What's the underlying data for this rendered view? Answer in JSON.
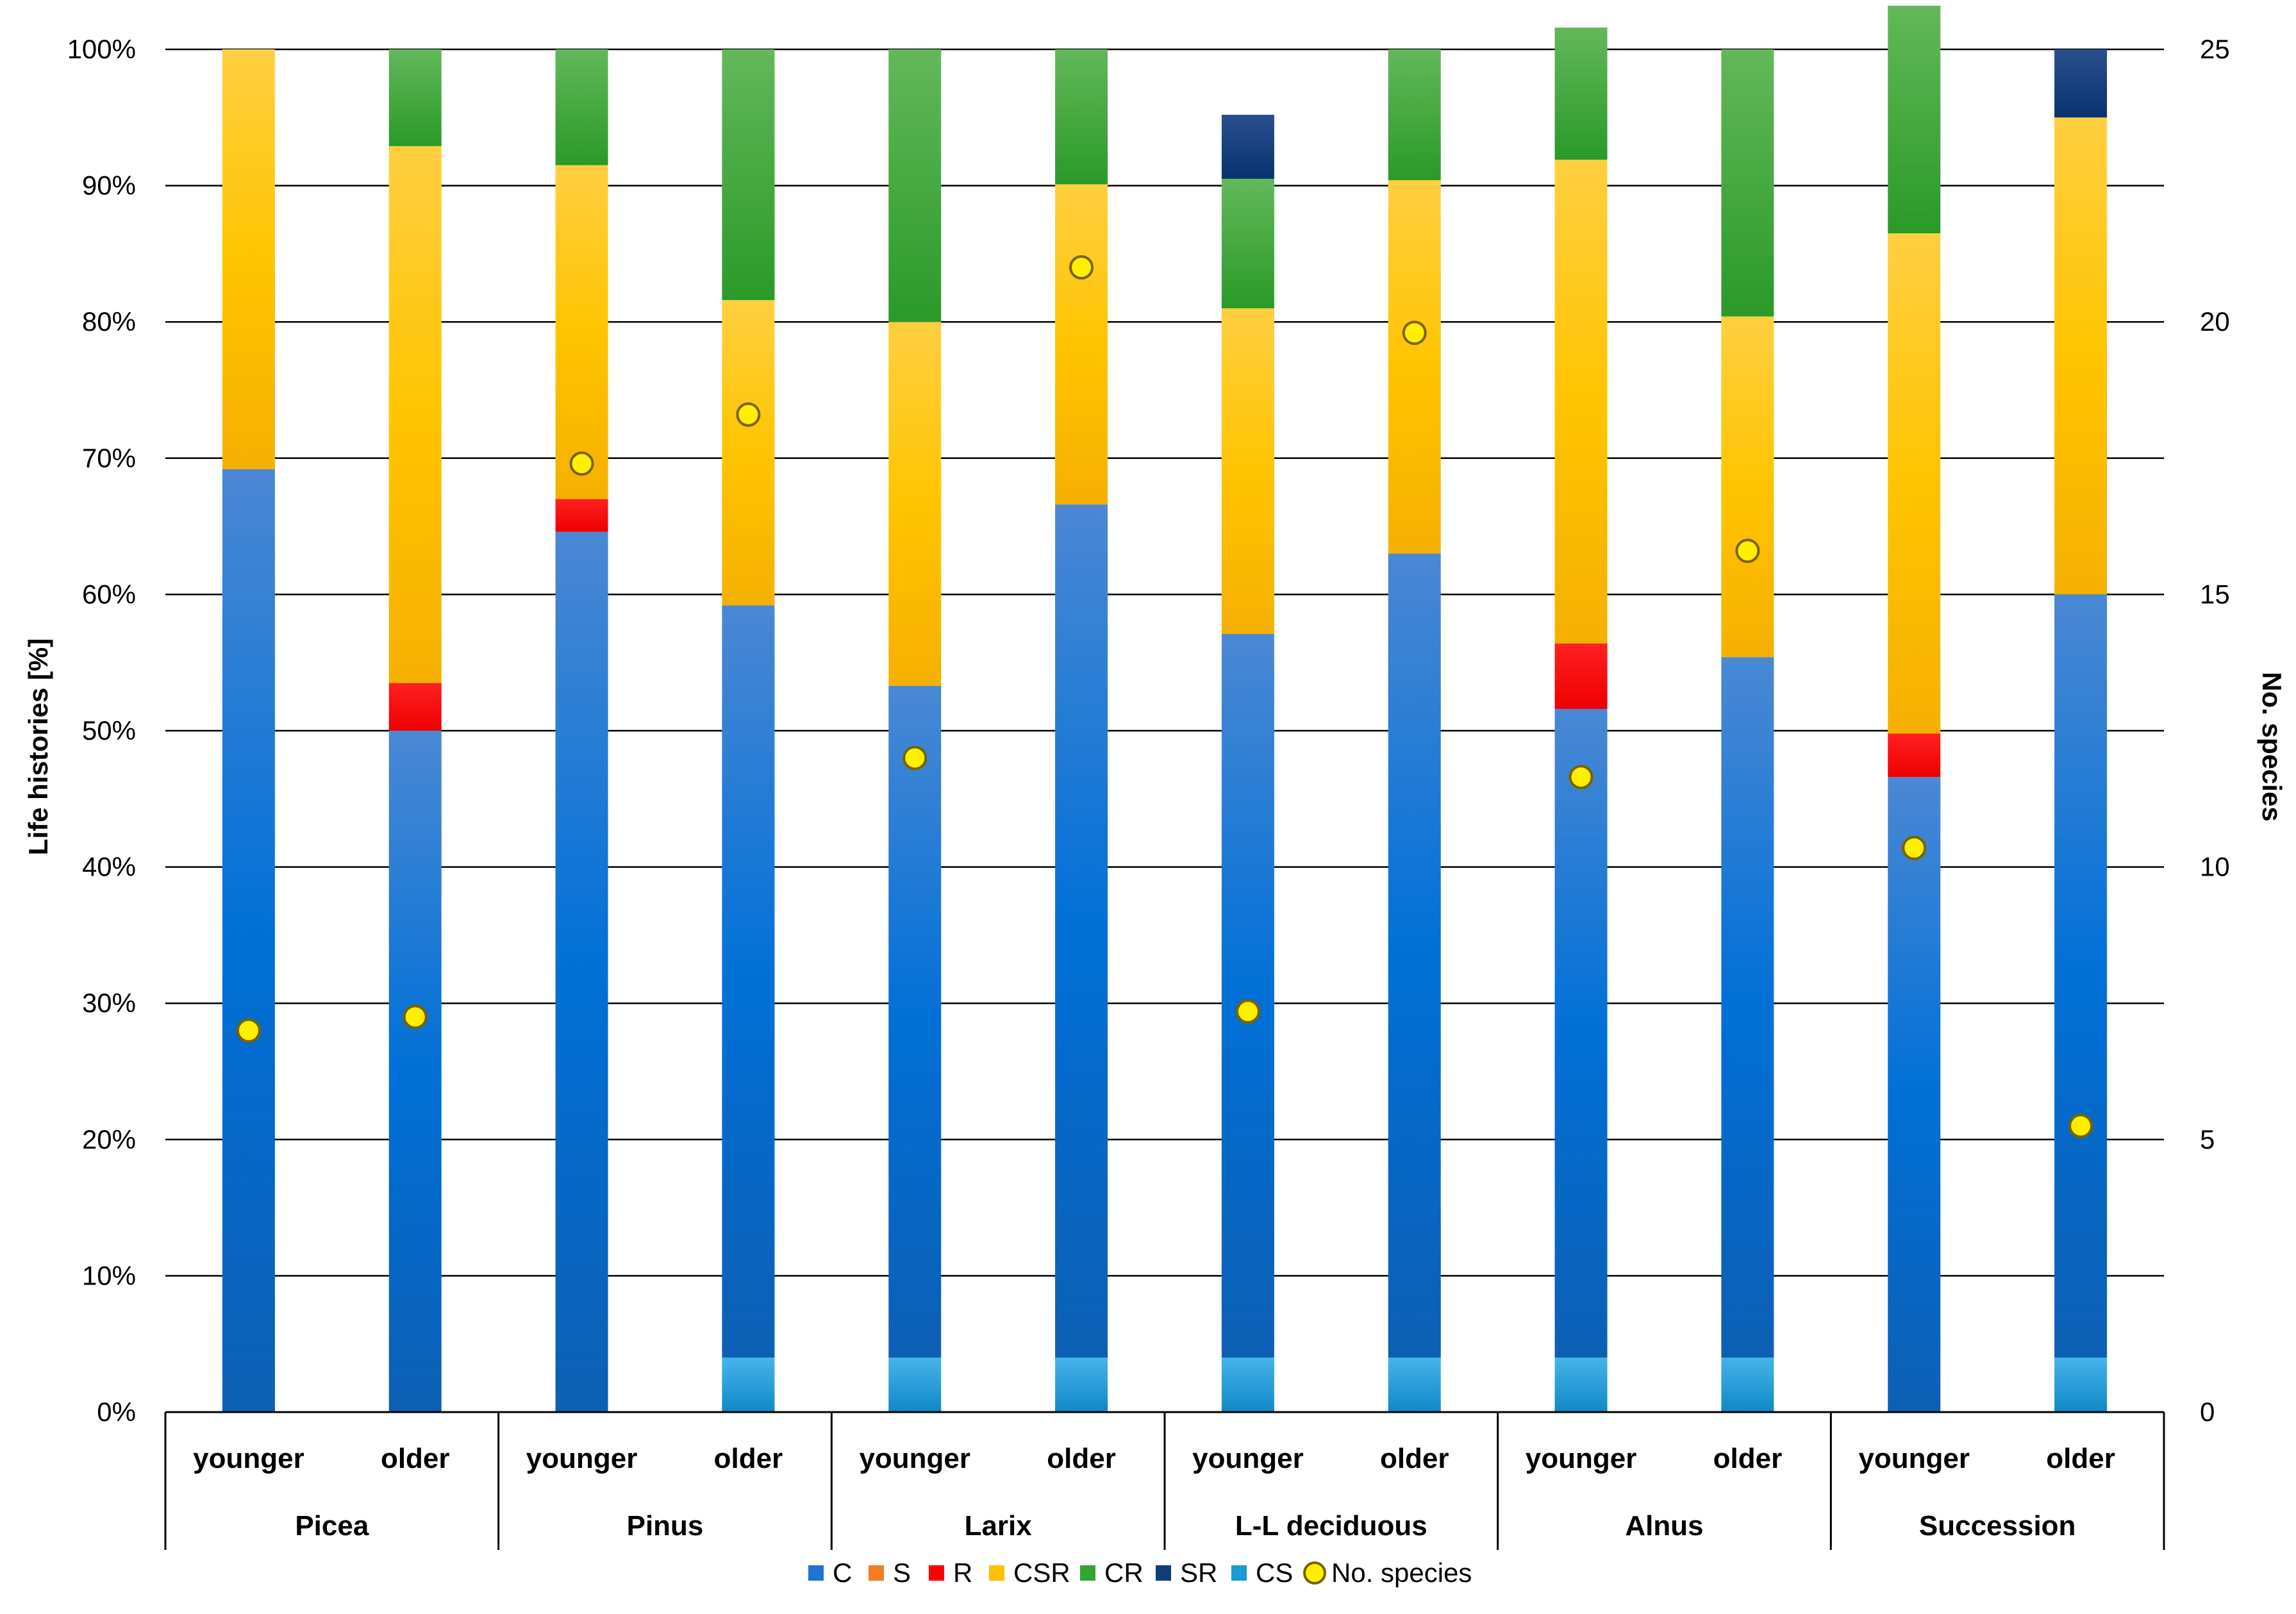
{
  "chart_data": {
    "type": "bar",
    "stacked": true,
    "ylabel": "Life histories [%]",
    "y2label": "No. species",
    "ylim": [
      0,
      100
    ],
    "y2lim": [
      0,
      25
    ],
    "y_ticks": [
      "0%",
      "10%",
      "20%",
      "30%",
      "40%",
      "50%",
      "60%",
      "70%",
      "80%",
      "90%",
      "100%"
    ],
    "y2_ticks": [
      "0",
      "5",
      "10",
      "15",
      "20",
      "25"
    ],
    "groups": [
      "Picea",
      "Pinus",
      "Larix",
      "L-L deciduous",
      "Alnus",
      "Succession"
    ],
    "subcategories": [
      "younger",
      "older"
    ],
    "series": [
      {
        "name": "CS",
        "color": "#1a9ad6",
        "values": [
          0,
          0,
          0,
          4,
          4,
          4,
          4,
          4,
          4,
          4,
          0,
          4
        ]
      },
      {
        "name": "C",
        "color": "#0f6fce",
        "values": [
          69.2,
          50,
          64.6,
          55.2,
          49.3,
          62.6,
          53.1,
          59,
          47.6,
          51.4,
          46.6,
          56
        ]
      },
      {
        "name": "S",
        "color": "#f57c20",
        "values": [
          0,
          0,
          0,
          0,
          0,
          0,
          0,
          0,
          0,
          0,
          0,
          0
        ]
      },
      {
        "name": "R",
        "color": "#ff0000",
        "values": [
          0,
          3.5,
          2.4,
          0,
          0,
          0,
          0,
          0,
          4.8,
          0,
          3.2,
          0
        ]
      },
      {
        "name": "CSR",
        "color": "#ffc000",
        "values": [
          30.8,
          39.4,
          24.5,
          22.4,
          26.7,
          23.5,
          23.9,
          27.4,
          35.5,
          25,
          36.7,
          35
        ]
      },
      {
        "name": "CR",
        "color": "#33a532",
        "values": [
          0,
          7.1,
          8.5,
          18.4,
          20,
          9.9,
          9.5,
          9.6,
          9.7,
          19.6,
          16.7,
          0
        ]
      },
      {
        "name": "SR",
        "color": "#0f3d7a",
        "values": [
          0,
          0,
          0,
          0,
          0,
          0,
          4.7,
          0,
          0,
          0,
          0,
          5
        ]
      }
    ],
    "species_series": {
      "name": "No. species",
      "axis": "secondary",
      "color": "#ffee00",
      "values": [
        7.0,
        7.25,
        17.4,
        18.3,
        12.0,
        21.0,
        7.35,
        19.8,
        11.65,
        15.8,
        10.35,
        5.25
      ]
    },
    "legend": {
      "position": "bottom",
      "entries": [
        {
          "label": "C",
          "color": "#1f74d4",
          "marker": "square"
        },
        {
          "label": "S",
          "color": "#f57c20",
          "marker": "square"
        },
        {
          "label": "R",
          "color": "#ff0000",
          "marker": "square"
        },
        {
          "label": "CSR",
          "color": "#ffc000",
          "marker": "square"
        },
        {
          "label": "CR",
          "color": "#33a532",
          "marker": "square"
        },
        {
          "label": "SR",
          "color": "#0f3d7a",
          "marker": "square"
        },
        {
          "label": "CS",
          "color": "#1a9ad6",
          "marker": "square"
        },
        {
          "label": "No. species",
          "color": "#ffee00",
          "marker": "circle"
        }
      ]
    }
  }
}
